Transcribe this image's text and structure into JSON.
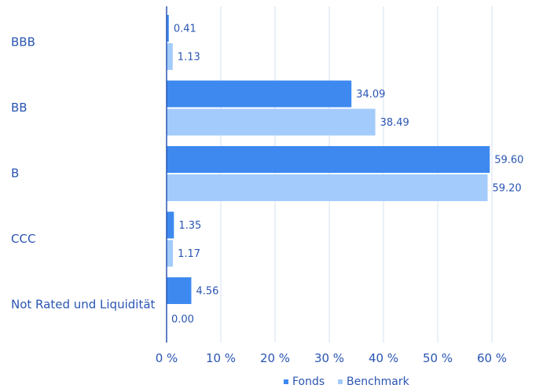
{
  "chart_data": {
    "type": "bar",
    "orientation": "horizontal",
    "categories": [
      "BBB",
      "BB",
      "B",
      "CCC",
      "Not Rated und Liquidität"
    ],
    "series": [
      {
        "name": "Fonds",
        "values": [
          0.41,
          34.09,
          59.6,
          1.35,
          4.56
        ],
        "labels": [
          "0.41",
          "34.09",
          "59.60",
          "1.35",
          "4.56"
        ],
        "color": "#3d89f0"
      },
      {
        "name": "Benchmark",
        "values": [
          1.13,
          38.49,
          59.2,
          1.17,
          0.0
        ],
        "labels": [
          "1.13",
          "38.49",
          "59.20",
          "1.17",
          "0.00"
        ],
        "color": "#a3cbfb"
      }
    ],
    "xlim": [
      0,
      60
    ],
    "xticks": [
      0,
      10,
      20,
      30,
      40,
      50,
      60
    ],
    "xtick_labels": [
      "0 %",
      "10 %",
      "20 %",
      "30 %",
      "40 %",
      "50 %",
      "60 %"
    ],
    "grid": true,
    "legend_position": "bottom-right",
    "colors": {
      "axis": "#2a55b3",
      "grid": "#dde6f3",
      "text": "#2a55b3"
    }
  }
}
